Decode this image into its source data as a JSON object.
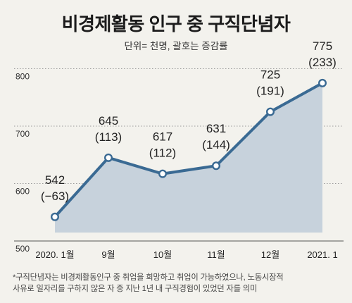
{
  "header": {
    "title": "비경제활동 인구 중 구직단념자",
    "unit_note": "단위= 천명, 괄호는 증감률"
  },
  "chart_data": {
    "type": "area",
    "title": "비경제활동 인구 중 구직단념자",
    "subtitle": "단위= 천명, 괄호는 증감률",
    "categories": [
      "2020. 1월",
      "9월",
      "10월",
      "11월",
      "12월",
      "2021. 1"
    ],
    "values": [
      542,
      645,
      617,
      631,
      725,
      775
    ],
    "changes": [
      "(−63)",
      "(113)",
      "(112)",
      "(144)",
      "(191)",
      "(233)"
    ],
    "value_labels": [
      "542",
      "645",
      "617",
      "631",
      "725",
      "775"
    ],
    "yticks": [
      "500",
      "600",
      "700",
      "800"
    ],
    "ylim": [
      500,
      800
    ],
    "xlabel": "",
    "ylabel": "",
    "grid": true,
    "colors": {
      "line": "#3a6a93",
      "fill": "#c7d2dc",
      "marker_fill": "#ffffff",
      "grid": "#9a9a9a"
    }
  },
  "footnote": {
    "line1": "*구직단념자는 비경제활동인구 중 취업을 희망하고 취업이 가능하였으나, 노동시장적",
    "line2": "사유로 일자리를 구하지 않은 자 중 지난 1년 내 구직경험이 있었던 자를 의미"
  }
}
